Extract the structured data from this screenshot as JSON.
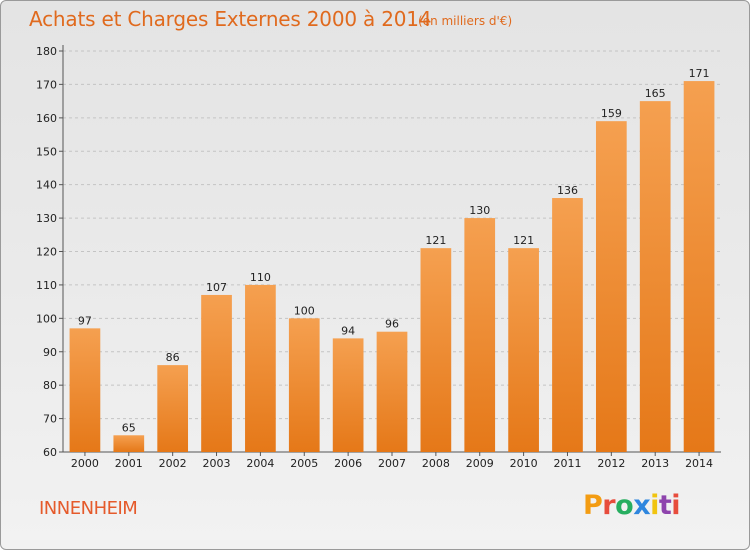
{
  "header": {
    "title": "Achats et Charges Externes 2000 à 2014",
    "subtitle": "(en milliers d'€)"
  },
  "footer": {
    "place": "INNENHEIM",
    "logo": {
      "text": "Proxiti",
      "colors": [
        "#f39c12",
        "#e74c3c",
        "#27ae60",
        "#2e86de",
        "#f1c40f",
        "#8e44ad",
        "#e74c3c"
      ]
    }
  },
  "colors": {
    "bar_light": "#f5a050",
    "bar_dark": "#e57818",
    "title": "#e06a1e"
  },
  "chart_data": {
    "type": "bar",
    "title": "Achats et Charges Externes 2000 à 2014",
    "subtitle": "(en milliers d'€)",
    "xlabel": "",
    "ylabel": "",
    "categories": [
      "2000",
      "2001",
      "2002",
      "2003",
      "2004",
      "2005",
      "2006",
      "2007",
      "2008",
      "2009",
      "2010",
      "2011",
      "2012",
      "2013",
      "2014"
    ],
    "values": [
      97,
      65,
      86,
      107,
      110,
      100,
      94,
      96,
      121,
      130,
      121,
      136,
      159,
      165,
      171
    ],
    "ylim": [
      60,
      180
    ],
    "yticks": [
      60,
      70,
      80,
      90,
      100,
      110,
      120,
      130,
      140,
      150,
      160,
      170,
      180
    ],
    "grid": true,
    "legend": "none"
  }
}
